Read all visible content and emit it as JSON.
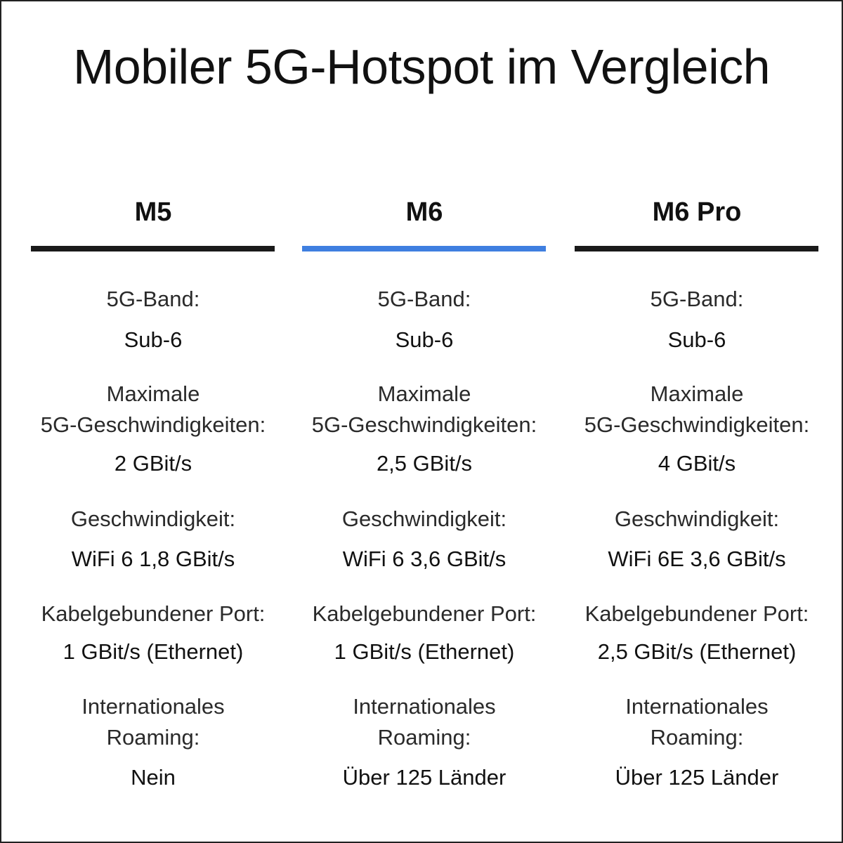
{
  "title": "Mobiler 5G-Hotspot im Vergleich",
  "colors": {
    "default_bar": "#1a1a1a",
    "highlight_bar": "#3f7fe0",
    "border": "#222222",
    "text": "#111111"
  },
  "labels": {
    "band": "5G-Band:",
    "max_speed_1": "Maximale",
    "max_speed_2": "5G-Geschwindigkeiten:",
    "wifi": "Geschwindigkeit:",
    "port": "Kabelgebundener Port:",
    "roaming_1": "Internationales",
    "roaming_2": "Roaming:"
  },
  "products": [
    {
      "name": "M5",
      "bar_color": "#1a1a1a",
      "band": "Sub-6",
      "max_speed": "2 GBit/s",
      "wifi": "WiFi 6 1,8 GBit/s",
      "port": "1 GBit/s (Ethernet)",
      "roaming": "Nein"
    },
    {
      "name": "M6",
      "bar_color": "#3f7fe0",
      "band": "Sub-6",
      "max_speed": "2,5 GBit/s",
      "wifi": "WiFi 6 3,6 GBit/s",
      "port": "1 GBit/s (Ethernet)",
      "roaming": "Über 125 Länder"
    },
    {
      "name": "M6 Pro",
      "bar_color": "#1a1a1a",
      "band": "Sub-6",
      "max_speed": "4 GBit/s",
      "wifi": "WiFi 6E 3,6 GBit/s",
      "port": "2,5 GBit/s (Ethernet)",
      "roaming": "Über 125 Länder"
    }
  ]
}
